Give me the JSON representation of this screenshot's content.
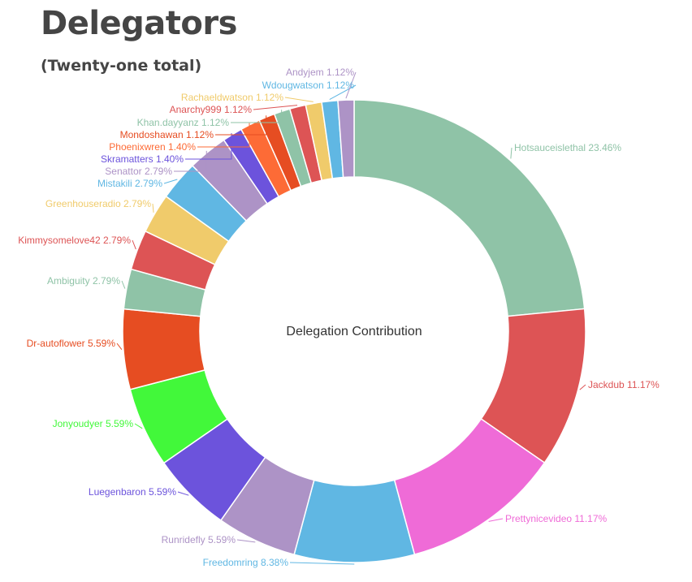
{
  "header": {
    "title": "Delegators",
    "subtitle": "(Twenty-one total)"
  },
  "chart_data": {
    "type": "pie",
    "variant": "donut",
    "center_label": "Delegation Contribution",
    "slices": [
      {
        "label": "Hotsauceislethal",
        "value": 23.46,
        "value_text": "23.46%",
        "color": "#8fc3a7"
      },
      {
        "label": "Jackdub",
        "value": 11.17,
        "value_text": "11.17%",
        "color": "#dd5455"
      },
      {
        "label": "Prettynicevideo",
        "value": 11.17,
        "value_text": "11.17%",
        "color": "#ef6bd7"
      },
      {
        "label": "Freedomring",
        "value": 8.38,
        "value_text": "8.38%",
        "color": "#60b7e3"
      },
      {
        "label": "Runridefly",
        "value": 5.59,
        "value_text": "5.59%",
        "color": "#ad93c6"
      },
      {
        "label": "Luegenbaron",
        "value": 5.59,
        "value_text": "5.59%",
        "color": "#6c53dc"
      },
      {
        "label": "Jonyoudyer",
        "value": 5.59,
        "value_text": "5.59%",
        "color": "#42f83a"
      },
      {
        "label": "Dr-autoflower",
        "value": 5.59,
        "value_text": "5.59%",
        "color": "#e64d22"
      },
      {
        "label": "Ambiguity",
        "value": 2.79,
        "value_text": "2.79%",
        "color": "#8fc3a7"
      },
      {
        "label": "Kimmysomelove42",
        "value": 2.79,
        "value_text": "2.79%",
        "color": "#dd5455"
      },
      {
        "label": "Greenhouseradio",
        "value": 2.79,
        "value_text": "2.79%",
        "color": "#f0cb6b"
      },
      {
        "label": "Mistakili",
        "value": 2.79,
        "value_text": "2.79%",
        "color": "#60b7e3"
      },
      {
        "label": "Senattor",
        "value": 2.79,
        "value_text": "2.79%",
        "color": "#ad93c6"
      },
      {
        "label": "Skramatters",
        "value": 1.4,
        "value_text": "1.40%",
        "color": "#6c53dc"
      },
      {
        "label": "Phoenixwren",
        "value": 1.4,
        "value_text": "1.40%",
        "color": "#fd6b36"
      },
      {
        "label": "Mondoshawan",
        "value": 1.12,
        "value_text": "1.12%",
        "color": "#e64d22"
      },
      {
        "label": "Khan.dayyanz",
        "value": 1.12,
        "value_text": "1.12%",
        "color": "#8fc3a7"
      },
      {
        "label": "Anarchy999",
        "value": 1.12,
        "value_text": "1.12%",
        "color": "#dd5455"
      },
      {
        "label": "Rachaeldwatson",
        "value": 1.12,
        "value_text": "1.12%",
        "color": "#f0cb6b"
      },
      {
        "label": "Wdougwatson",
        "value": 1.12,
        "value_text": "1.12%",
        "color": "#60b7e3"
      },
      {
        "label": "Andyjem",
        "value": 1.12,
        "value_text": "1.12%",
        "color": "#ad93c6"
      }
    ]
  }
}
